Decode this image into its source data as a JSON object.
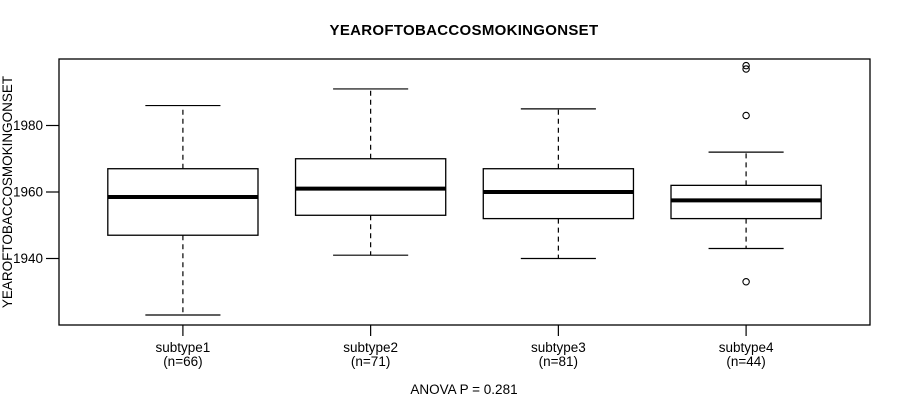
{
  "chart_data": {
    "type": "boxplot",
    "title": "YEAROFTOBACCOSMOKINGONSET",
    "ylabel": "YEAROFTOBACCOSMOKINGONSET",
    "xlabel": "",
    "subtitle": "ANOVA P = 0.281",
    "anova_p": 0.281,
    "ylim": [
      1920,
      2000
    ],
    "yticks": [
      1940,
      1960,
      1980
    ],
    "grid": false,
    "legend": "none",
    "groups": [
      {
        "label": "subtype1",
        "n_label": "(n=66)",
        "n": 66,
        "whisker_low": 1923,
        "q1": 1947,
        "median": 1958.5,
        "q3": 1967,
        "whisker_high": 1986,
        "outliers": []
      },
      {
        "label": "subtype2",
        "n_label": "(n=71)",
        "n": 71,
        "whisker_low": 1941,
        "q1": 1953,
        "median": 1961,
        "q3": 1970,
        "whisker_high": 1991,
        "outliers": []
      },
      {
        "label": "subtype3",
        "n_label": "(n=81)",
        "n": 81,
        "whisker_low": 1940,
        "q1": 1952,
        "median": 1960,
        "q3": 1967,
        "whisker_high": 1985,
        "outliers": []
      },
      {
        "label": "subtype4",
        "n_label": "(n=44)",
        "n": 44,
        "whisker_low": 1943,
        "q1": 1952,
        "median": 1957.5,
        "q3": 1962,
        "whisker_high": 1972,
        "outliers": [
          1998,
          1997,
          1983,
          1933
        ]
      }
    ],
    "colors": {
      "foreground": "#000000",
      "background": "#ffffff"
    }
  }
}
